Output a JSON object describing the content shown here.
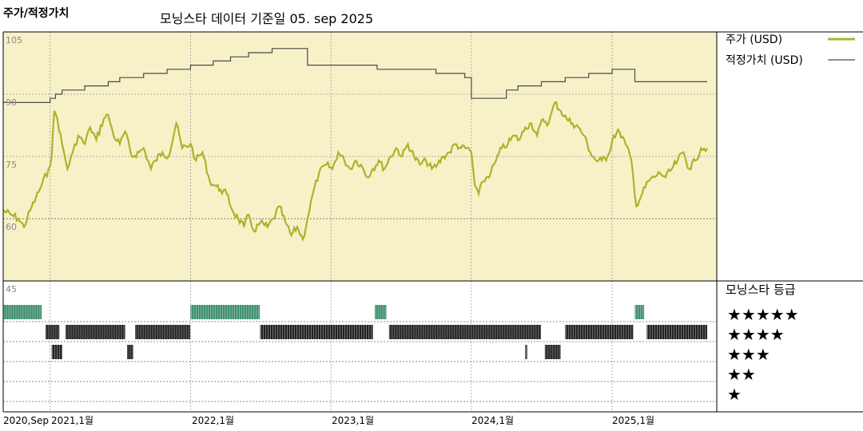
{
  "header": {
    "left_title": "주가/적정가치",
    "center_title": "모닝스타 데이터 기준일 05. sep 2025"
  },
  "colors": {
    "price": "#a8b52a",
    "fair_value": "#4a4a4a",
    "plot_bg": "#f7f1c8",
    "rating_5": "#3f8f6e",
    "rating_other": "#222222"
  },
  "chart_data": [
    {
      "type": "line",
      "y_ticks": [
        "105",
        "90",
        "75",
        "60"
      ],
      "ylim": [
        45,
        105
      ],
      "x_ticks": [
        "2020,Sep",
        "2021,1월",
        "2022,1월",
        "2023,1월",
        "2024,1월",
        "2025,1월"
      ],
      "xlim": [
        "2020-09-01",
        "2025-09-05"
      ],
      "legend_position": "right",
      "series": [
        {
          "name": "주가 (USD)",
          "points": [
            [
              "2020-09-01",
              62
            ],
            [
              "2020-09-20",
              61
            ],
            [
              "2020-10-10",
              60
            ],
            [
              "2020-10-25",
              58
            ],
            [
              "2020-11-10",
              62
            ],
            [
              "2020-11-25",
              65
            ],
            [
              "2020-12-10",
              68
            ],
            [
              "2020-12-28",
              72
            ],
            [
              "2021-01-05",
              75
            ],
            [
              "2021-01-12",
              86
            ],
            [
              "2021-01-20",
              84
            ],
            [
              "2021-02-01",
              78
            ],
            [
              "2021-02-15",
              72
            ],
            [
              "2021-03-01",
              76
            ],
            [
              "2021-03-15",
              80
            ],
            [
              "2021-04-01",
              78
            ],
            [
              "2021-04-15",
              82
            ],
            [
              "2021-05-01",
              79
            ],
            [
              "2021-05-20",
              84
            ],
            [
              "2021-06-01",
              85
            ],
            [
              "2021-06-15",
              80
            ],
            [
              "2021-07-01",
              78
            ],
            [
              "2021-07-15",
              81
            ],
            [
              "2021-08-01",
              75
            ],
            [
              "2021-08-20",
              76
            ],
            [
              "2021-09-01",
              77
            ],
            [
              "2021-09-20",
              72
            ],
            [
              "2021-10-01",
              74
            ],
            [
              "2021-10-20",
              76
            ],
            [
              "2021-11-05",
              75
            ],
            [
              "2021-11-25",
              83
            ],
            [
              "2021-12-10",
              77
            ],
            [
              "2022-01-01",
              78
            ],
            [
              "2022-01-15",
              74
            ],
            [
              "2022-02-01",
              76
            ],
            [
              "2022-02-20",
              69
            ],
            [
              "2022-03-05",
              68
            ],
            [
              "2022-03-20",
              67
            ],
            [
              "2022-04-05",
              66
            ],
            [
              "2022-04-20",
              62
            ],
            [
              "2022-05-05",
              60
            ],
            [
              "2022-05-20",
              58
            ],
            [
              "2022-06-01",
              61
            ],
            [
              "2022-06-15",
              57
            ],
            [
              "2022-07-01",
              59
            ],
            [
              "2022-07-20",
              58
            ],
            [
              "2022-08-05",
              60
            ],
            [
              "2022-08-20",
              63
            ],
            [
              "2022-09-05",
              59
            ],
            [
              "2022-09-20",
              56
            ],
            [
              "2022-10-05",
              58
            ],
            [
              "2022-10-20",
              55
            ],
            [
              "2022-11-01",
              60
            ],
            [
              "2022-11-15",
              66
            ],
            [
              "2022-12-01",
              71
            ],
            [
              "2022-12-20",
              73
            ],
            [
              "2023-01-05",
              72
            ],
            [
              "2023-01-20",
              76
            ],
            [
              "2023-02-05",
              74
            ],
            [
              "2023-02-20",
              72
            ],
            [
              "2023-03-05",
              74
            ],
            [
              "2023-03-20",
              73
            ],
            [
              "2023-04-05",
              70
            ],
            [
              "2023-04-20",
              72
            ],
            [
              "2023-05-05",
              74
            ],
            [
              "2023-05-20",
              72
            ],
            [
              "2023-06-05",
              75
            ],
            [
              "2023-06-20",
              77
            ],
            [
              "2023-07-05",
              75
            ],
            [
              "2023-07-20",
              78
            ],
            [
              "2023-08-05",
              75
            ],
            [
              "2023-08-20",
              73
            ],
            [
              "2023-09-05",
              74
            ],
            [
              "2023-09-20",
              72
            ],
            [
              "2023-10-05",
              73
            ],
            [
              "2023-10-20",
              75
            ],
            [
              "2023-11-05",
              76
            ],
            [
              "2023-11-20",
              78
            ],
            [
              "2023-12-05",
              77
            ],
            [
              "2023-12-20",
              77
            ],
            [
              "2024-01-01",
              76
            ],
            [
              "2024-01-10",
              68
            ],
            [
              "2024-01-20",
              66
            ],
            [
              "2024-02-01",
              69
            ],
            [
              "2024-02-20",
              71
            ],
            [
              "2024-03-05",
              74
            ],
            [
              "2024-03-20",
              77
            ],
            [
              "2024-04-05",
              78
            ],
            [
              "2024-04-20",
              80
            ],
            [
              "2024-05-05",
              79
            ],
            [
              "2024-05-20",
              82
            ],
            [
              "2024-06-05",
              83
            ],
            [
              "2024-06-20",
              80
            ],
            [
              "2024-07-05",
              84
            ],
            [
              "2024-07-20",
              83
            ],
            [
              "2024-08-05",
              88
            ],
            [
              "2024-08-20",
              86
            ],
            [
              "2024-09-05",
              84
            ],
            [
              "2024-09-20",
              83
            ],
            [
              "2024-10-05",
              82
            ],
            [
              "2024-10-20",
              80
            ],
            [
              "2024-11-05",
              76
            ],
            [
              "2024-11-20",
              74
            ],
            [
              "2024-12-05",
              74
            ],
            [
              "2024-12-20",
              75
            ],
            [
              "2025-01-05",
              80
            ],
            [
              "2025-01-20",
              81
            ],
            [
              "2025-02-05",
              78
            ],
            [
              "2025-02-20",
              74
            ],
            [
              "2025-03-05",
              63
            ],
            [
              "2025-03-20",
              66
            ],
            [
              "2025-04-05",
              69
            ],
            [
              "2025-04-20",
              70
            ],
            [
              "2025-05-05",
              71
            ],
            [
              "2025-05-20",
              70
            ],
            [
              "2025-06-05",
              72
            ],
            [
              "2025-06-20",
              74
            ],
            [
              "2025-07-05",
              76
            ],
            [
              "2025-07-20",
              72
            ],
            [
              "2025-08-05",
              74
            ],
            [
              "2025-08-20",
              77
            ],
            [
              "2025-09-05",
              77
            ]
          ]
        },
        {
          "name": "적정가치 (USD)",
          "points": [
            [
              "2020-09-01",
              88
            ],
            [
              "2020-12-25",
              88
            ],
            [
              "2021-01-01",
              89
            ],
            [
              "2021-01-15",
              90
            ],
            [
              "2021-02-01",
              91
            ],
            [
              "2021-04-01",
              92
            ],
            [
              "2021-06-01",
              93
            ],
            [
              "2021-07-01",
              94
            ],
            [
              "2021-09-01",
              95
            ],
            [
              "2021-11-01",
              96
            ],
            [
              "2022-01-01",
              97
            ],
            [
              "2022-03-01",
              98
            ],
            [
              "2022-04-15",
              99
            ],
            [
              "2022-06-01",
              100
            ],
            [
              "2022-08-01",
              101
            ],
            [
              "2022-11-01",
              97
            ],
            [
              "2023-05-01",
              96
            ],
            [
              "2023-10-01",
              95
            ],
            [
              "2023-12-15",
              94
            ],
            [
              "2024-01-01",
              89
            ],
            [
              "2024-04-01",
              91
            ],
            [
              "2024-05-01",
              92
            ],
            [
              "2024-07-01",
              93
            ],
            [
              "2024-09-01",
              94
            ],
            [
              "2024-11-01",
              95
            ],
            [
              "2025-01-01",
              96
            ],
            [
              "2025-03-01",
              93
            ],
            [
              "2025-09-05",
              93
            ]
          ]
        }
      ]
    },
    {
      "type": "bar",
      "title": "모닝스타 등급",
      "y_tick": "45",
      "levels": [
        "★★★★★",
        "★★★★",
        "★★★",
        "★★",
        "★"
      ],
      "rating_periods": [
        {
          "stars": 5,
          "start": "2020-09-01",
          "end": "2020-12-10"
        },
        {
          "stars": 4,
          "start": "2020-12-20",
          "end": "2021-01-25"
        },
        {
          "stars": 3,
          "start": "2021-01-05",
          "end": "2021-02-01"
        },
        {
          "stars": 4,
          "start": "2021-02-10",
          "end": "2021-07-15"
        },
        {
          "stars": 3,
          "start": "2021-07-20",
          "end": "2021-08-05"
        },
        {
          "stars": 4,
          "start": "2021-08-10",
          "end": "2021-12-31"
        },
        {
          "stars": 5,
          "start": "2022-01-01",
          "end": "2022-06-30"
        },
        {
          "stars": 4,
          "start": "2022-07-01",
          "end": "2023-04-20"
        },
        {
          "stars": 5,
          "start": "2023-04-25",
          "end": "2023-05-25"
        },
        {
          "stars": 4,
          "start": "2023-06-01",
          "end": "2024-06-30"
        },
        {
          "stars": 3,
          "start": "2024-05-20",
          "end": "2024-05-25"
        },
        {
          "stars": 3,
          "start": "2024-07-10",
          "end": "2024-08-20"
        },
        {
          "stars": 4,
          "start": "2024-09-01",
          "end": "2025-02-25"
        },
        {
          "stars": 5,
          "start": "2025-03-01",
          "end": "2025-03-25"
        },
        {
          "stars": 4,
          "start": "2025-04-01",
          "end": "2025-09-05"
        }
      ]
    }
  ]
}
